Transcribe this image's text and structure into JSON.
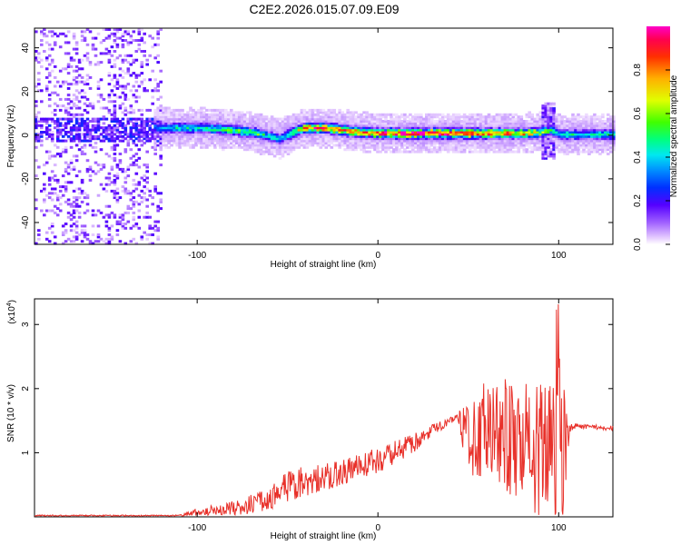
{
  "title": "C2E2.2026.015.07.09.E09",
  "chart_data": [
    {
      "type": "heatmap",
      "xlabel": "Height of straight line (km)",
      "ylabel": "Frequency (Hz)",
      "xlim": [
        -190,
        130
      ],
      "ylim": [
        -50,
        49
      ],
      "x_ticks": [
        -100,
        0,
        100
      ],
      "y_ticks": [
        -40,
        -20,
        0,
        20,
        40
      ],
      "colorbar": {
        "label": "Normalized spectral amplitude",
        "range": [
          0,
          1
        ],
        "ticks": [
          0.0,
          0.2,
          0.4,
          0.6,
          0.8
        ],
        "tick_labels": [
          "0.0",
          "0.2",
          "0.4",
          "0.6",
          "0.8"
        ]
      },
      "ridge": {
        "x": [
          -125,
          -110,
          -100,
          -90,
          -80,
          -70,
          -60,
          -55,
          -50,
          -45,
          -40,
          -35,
          -30,
          -25,
          -20,
          -10,
          0,
          10,
          20,
          30,
          40,
          50,
          60,
          70,
          80,
          90,
          95,
          100,
          110,
          120,
          130
        ],
        "frequency": [
          3,
          3,
          3,
          2.5,
          2,
          1,
          -1,
          -2,
          0,
          2,
          3,
          3,
          3,
          2.5,
          2,
          1,
          0.5,
          0.5,
          0.5,
          0.5,
          0.5,
          0.5,
          0.5,
          0.5,
          0.5,
          1,
          2,
          0,
          0,
          0,
          0
        ],
        "amplitude": [
          0.35,
          0.45,
          0.45,
          0.5,
          0.55,
          0.55,
          0.45,
          0.4,
          0.5,
          0.65,
          0.85,
          0.9,
          0.85,
          0.8,
          0.8,
          0.8,
          0.85,
          0.9,
          0.95,
          0.95,
          0.9,
          0.85,
          0.85,
          0.8,
          0.75,
          0.65,
          0.5,
          0.45,
          0.45,
          0.45,
          0.45
        ]
      },
      "noise_region_x": [
        -190,
        -120
      ]
    },
    {
      "type": "line",
      "xlabel": "Height of straight line (km)",
      "ylabel": "SNR (10 * v/v)",
      "y_multiplier": "(x10",
      "y_multiplier_exp": "4",
      "y_multiplier_close": ")",
      "xlim": [
        -190,
        130
      ],
      "ylim": [
        0,
        3.4
      ],
      "x_ticks": [
        -100,
        0,
        100
      ],
      "y_ticks": [
        1,
        2,
        3
      ],
      "color": "#e8312a",
      "envelope": {
        "x": [
          -190,
          -110,
          -100,
          -85,
          -75,
          -60,
          -50,
          -40,
          -20,
          0,
          20,
          30,
          40,
          44,
          48,
          55,
          70,
          85,
          95,
          100,
          103,
          106,
          110,
          130
        ],
        "mean": [
          0.02,
          0.02,
          0.08,
          0.12,
          0.15,
          0.3,
          0.45,
          0.55,
          0.7,
          0.88,
          1.15,
          1.35,
          1.5,
          1.55,
          1.4,
          1.3,
          1.25,
          1.1,
          1.0,
          0.9,
          1.0,
          1.38,
          1.42,
          1.38
        ],
        "variation": [
          0.01,
          0.01,
          0.06,
          0.1,
          0.12,
          0.2,
          0.25,
          0.25,
          0.2,
          0.2,
          0.15,
          0.1,
          0.06,
          0.05,
          0.5,
          0.8,
          0.9,
          1.0,
          1.1,
          1.6,
          1.0,
          0.06,
          0.04,
          0.04
        ]
      }
    }
  ]
}
